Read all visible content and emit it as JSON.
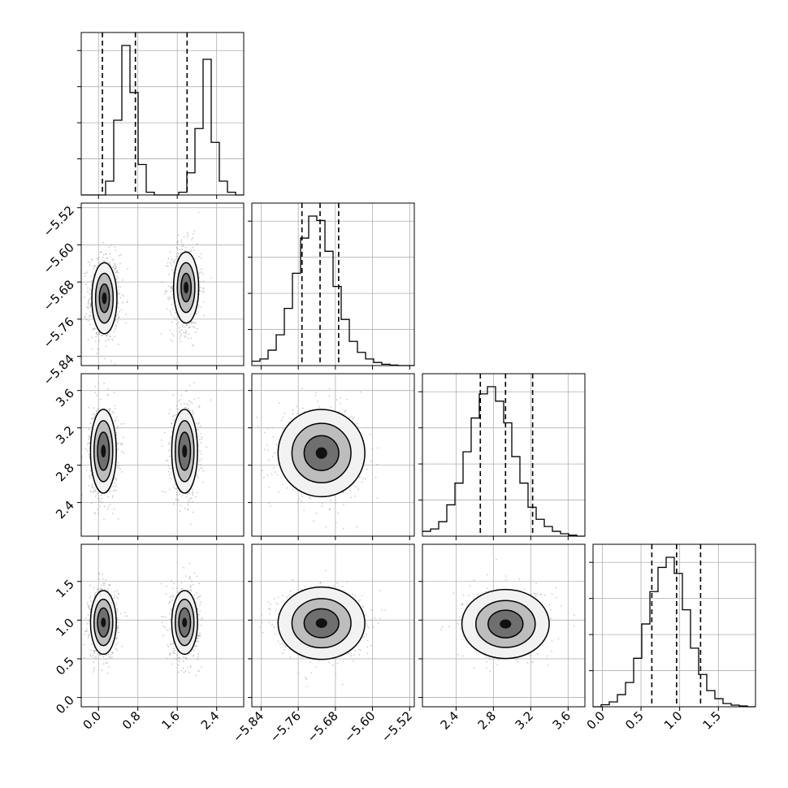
{
  "chart_data": {
    "type": "corner",
    "parameters": [
      {
        "id": "p0",
        "range": [
          -0.35,
          2.95
        ],
        "ticks": [
          0.0,
          0.8,
          1.6,
          2.4
        ],
        "tick_labels": [
          "0.0",
          "0.8",
          "1.6",
          "2.4"
        ],
        "quantiles": [
          0.08,
          0.75,
          1.8
        ],
        "histogram": {
          "bin_start": -0.35,
          "bin_width": 0.165,
          "counts": [
            0,
            0,
            0,
            0.5,
            2.7,
            5.4,
            3.7,
            1.1,
            0.1,
            0,
            0,
            0,
            0.1,
            0.8,
            2.4,
            4.9,
            1.9,
            0.5,
            0.1,
            0
          ]
        }
      },
      {
        "id": "p1",
        "range": [
          -5.86,
          -5.51
        ],
        "ticks": [
          -5.84,
          -5.76,
          -5.68,
          -5.6,
          -5.52
        ],
        "tick_labels": [
          "−5.84",
          "−5.76",
          "−5.68",
          "−5.60",
          "−5.52"
        ],
        "quantiles": [
          -5.752,
          -5.713,
          -5.673
        ],
        "histogram": {
          "bin_start": -5.86,
          "bin_width": 0.0175,
          "counts": [
            0.1,
            0.15,
            0.35,
            0.7,
            1.3,
            2.1,
            2.9,
            3.4,
            3.3,
            2.6,
            1.8,
            1.05,
            0.55,
            0.3,
            0.15,
            0.07,
            0.03,
            0.01,
            0,
            0
          ]
        }
      },
      {
        "id": "p2",
        "range": [
          2.04,
          3.78
        ],
        "ticks": [
          2.4,
          2.8,
          3.2,
          3.6
        ],
        "tick_labels": [
          "2.4",
          "2.8",
          "3.2",
          "3.6"
        ],
        "quantiles": [
          2.66,
          2.93,
          3.22
        ],
        "histogram": {
          "bin_start": 2.04,
          "bin_width": 0.087,
          "counts": [
            0.1,
            0.15,
            0.3,
            0.65,
            1.1,
            1.75,
            2.45,
            2.95,
            3.1,
            2.8,
            2.35,
            1.65,
            1.1,
            0.6,
            0.35,
            0.2,
            0.1,
            0.05,
            0.02,
            0
          ]
        }
      },
      {
        "id": "p3",
        "range": [
          -0.12,
          1.98
        ],
        "ticks": [
          0.0,
          0.5,
          1.0,
          1.5
        ],
        "tick_labels": [
          "0.0",
          "0.5",
          "1.0",
          "1.5"
        ],
        "quantiles": [
          0.64,
          0.96,
          1.27
        ],
        "histogram": {
          "bin_start": -0.12,
          "bin_width": 0.105,
          "counts": [
            0,
            0.05,
            0.12,
            0.3,
            0.6,
            1.2,
            2.05,
            2.85,
            3.45,
            3.7,
            3.3,
            2.4,
            1.45,
            0.8,
            0.4,
            0.2,
            0.08,
            0.04,
            0.02,
            0
          ]
        }
      }
    ],
    "blobs": [
      {
        "row": 1,
        "col": 0,
        "centers": [
          [
            0.12,
            -5.715
          ],
          [
            1.78,
            -5.692
          ]
        ],
        "sigma": [
          0.15,
          0.045
        ],
        "levels": [
          0.4,
          0.7,
          1.0
        ]
      },
      {
        "row": 2,
        "col": 0,
        "centers": [
          [
            0.1,
            2.95
          ],
          [
            1.75,
            2.95
          ]
        ],
        "sigma": [
          0.14,
          0.24
        ],
        "levels": [
          0.5,
          0.8,
          1.1
        ]
      },
      {
        "row": 2,
        "col": 1,
        "centers": [
          [
            -5.71,
            2.93
          ]
        ],
        "sigma": [
          0.044,
          0.22
        ],
        "levels": [
          0.5,
          0.85,
          1.25
        ]
      },
      {
        "row": 3,
        "col": 0,
        "centers": [
          [
            0.1,
            0.97
          ],
          [
            1.75,
            0.97
          ]
        ],
        "sigma": [
          0.14,
          0.22
        ],
        "levels": [
          0.5,
          0.8,
          1.1
        ]
      },
      {
        "row": 3,
        "col": 1,
        "centers": [
          [
            -5.71,
            0.96
          ]
        ],
        "sigma": [
          0.044,
          0.22
        ],
        "levels": [
          0.5,
          0.85,
          1.25
        ]
      },
      {
        "row": 3,
        "col": 2,
        "centers": [
          [
            2.93,
            0.95
          ]
        ],
        "sigma": [
          0.22,
          0.21
        ],
        "levels": [
          0.5,
          0.85,
          1.25
        ]
      }
    ],
    "grid": true,
    "colors": {
      "line": "#000000",
      "grid": "#b0b0b0",
      "point": "#9a9a9a",
      "frame": "#000000"
    }
  }
}
